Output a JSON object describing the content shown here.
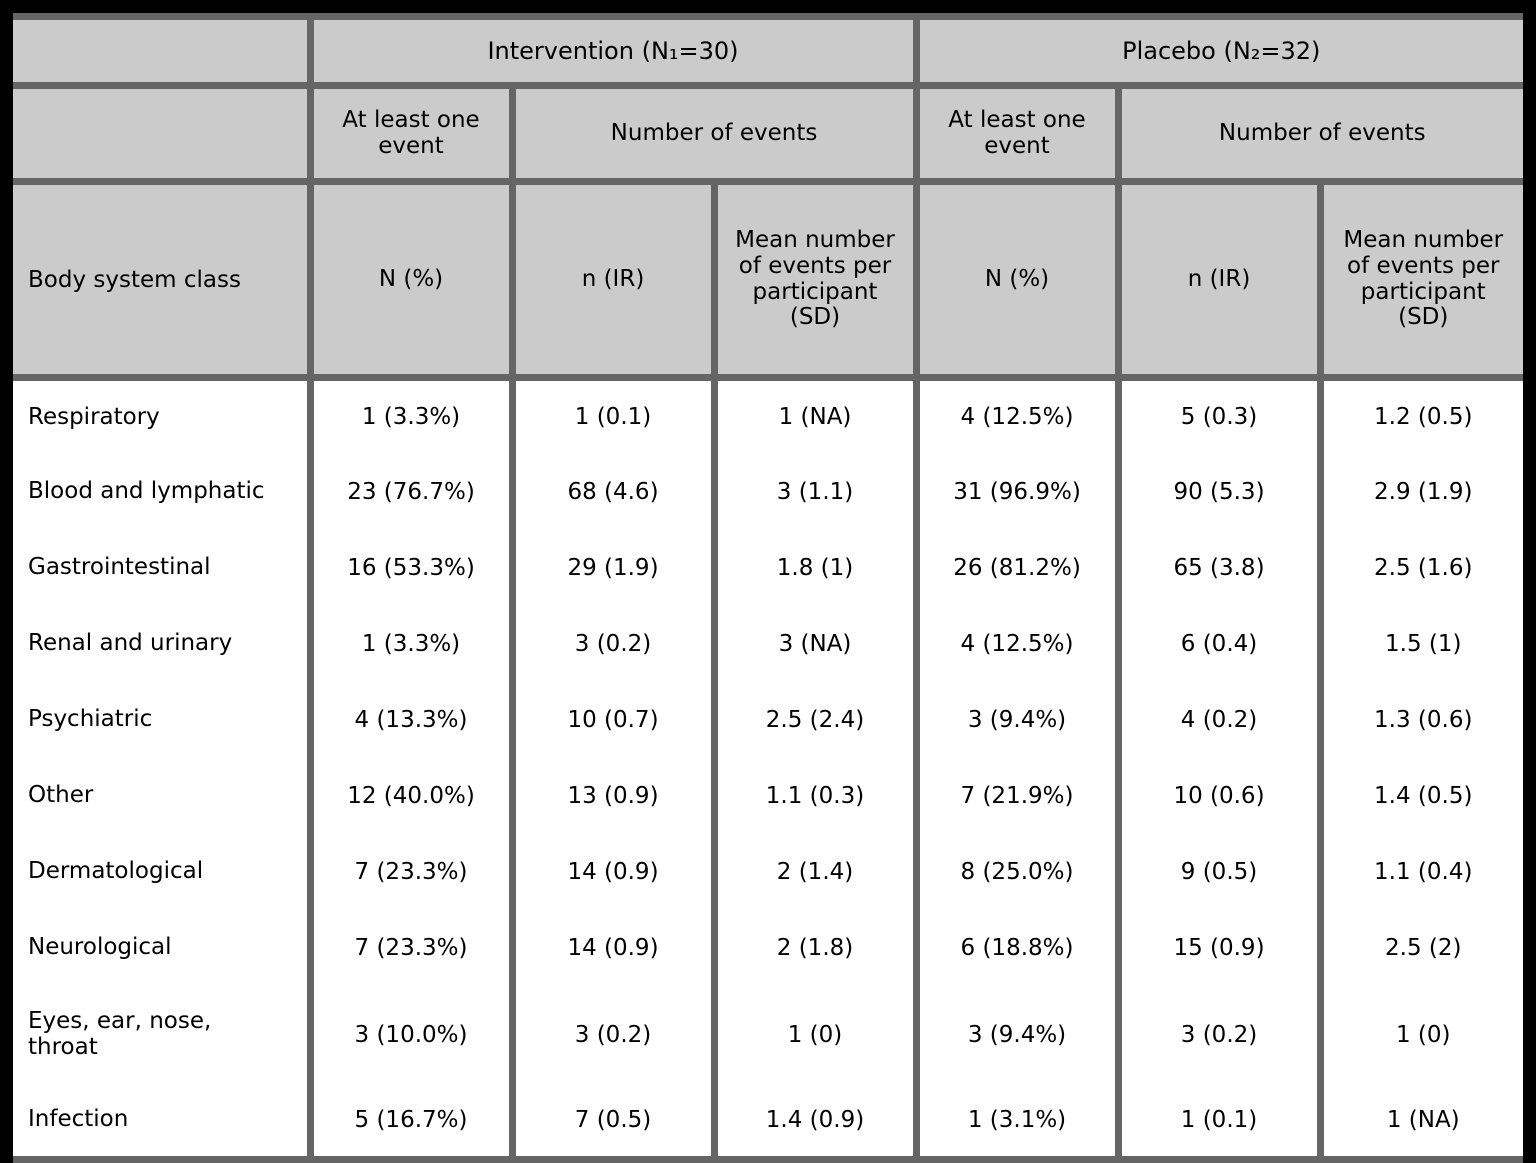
{
  "table": {
    "groups": [
      {
        "label": "Intervention (N₁=30)"
      },
      {
        "label": "Placebo (N₂=32)"
      }
    ],
    "subheaders": {
      "at_least_one_event": "At least one event",
      "number_of_events": "Number of events"
    },
    "column_headers": {
      "stub": "Body system class",
      "n_pct": "N (%)",
      "n_ir": "n (IR)",
      "mean": "Mean number of events per participant (SD)"
    },
    "rows": [
      {
        "label": "Respiratory",
        "cells": [
          "1 (3.3%)",
          "1 (0.1)",
          "1 (NA)",
          "4 (12.5%)",
          "5 (0.3)",
          "1.2 (0.5)"
        ]
      },
      {
        "label": "Blood and lymphatic",
        "cells": [
          "23 (76.7%)",
          "68 (4.6)",
          "3 (1.1)",
          "31 (96.9%)",
          "90 (5.3)",
          "2.9 (1.9)"
        ]
      },
      {
        "label": "Gastrointestinal",
        "cells": [
          "16 (53.3%)",
          "29 (1.9)",
          "1.8 (1)",
          "26 (81.2%)",
          "65 (3.8)",
          "2.5 (1.6)"
        ]
      },
      {
        "label": "Renal and urinary",
        "cells": [
          "1 (3.3%)",
          "3 (0.2)",
          "3 (NA)",
          "4 (12.5%)",
          "6 (0.4)",
          "1.5 (1)"
        ]
      },
      {
        "label": "Psychiatric",
        "cells": [
          "4 (13.3%)",
          "10 (0.7)",
          "2.5 (2.4)",
          "3 (9.4%)",
          "4 (0.2)",
          "1.3 (0.6)"
        ]
      },
      {
        "label": "Other",
        "cells": [
          "12 (40.0%)",
          "13 (0.9)",
          "1.1 (0.3)",
          "7 (21.9%)",
          "10 (0.6)",
          "1.4 (0.5)"
        ]
      },
      {
        "label": "Dermatological",
        "cells": [
          "7 (23.3%)",
          "14 (0.9)",
          "2 (1.4)",
          "8 (25.0%)",
          "9 (0.5)",
          "1.1 (0.4)"
        ]
      },
      {
        "label": "Neurological",
        "cells": [
          "7 (23.3%)",
          "14 (0.9)",
          "2 (1.8)",
          "6 (18.8%)",
          "15 (0.9)",
          "2.5 (2)"
        ]
      },
      {
        "label": "Eyes, ear, nose, throat",
        "cells": [
          "3 (10.0%)",
          "3 (0.2)",
          "1 (0)",
          "3 (9.4%)",
          "3 (0.2)",
          "1 (0)"
        ]
      },
      {
        "label": "Infection",
        "cells": [
          "5 (16.7%)",
          "7 (0.5)",
          "1.4 (0.9)",
          "1 (3.1%)",
          "1 (0.1)",
          "1 (NA)"
        ]
      }
    ],
    "colors": {
      "page_background": "#000000",
      "header_background": "#cbcbcb",
      "body_background": "#ffffff",
      "border": "#656565",
      "text": "#000000"
    }
  }
}
